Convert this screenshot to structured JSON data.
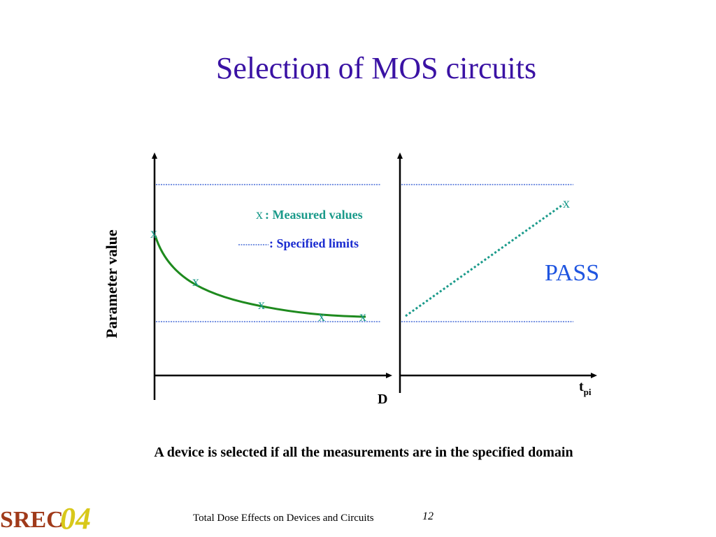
{
  "slide": {
    "title": "Selection of MOS circuits",
    "caption": "A device is selected if all the measurements are in the specified domain",
    "footer_text": "Total Dose Effects on Devices and Circuits",
    "page_number": "12",
    "logo_text": "SREC04"
  },
  "diagram": {
    "ylabel": "Parameter value",
    "left_xlabel": "D",
    "right_xlabel_main": "t",
    "right_xlabel_sub": "pi",
    "legend_marker": "x",
    "legend_measured": ": Measured values",
    "legend_limits": ": Specified limits",
    "marker_label": "x",
    "pass_label": "PASS",
    "colors": {
      "title": "#3a12a4",
      "limit_line": "#4a6fd8",
      "curve": "#1e8a1e",
      "marker": "#1a9a8a",
      "pass": "#1f55e0",
      "legend_limits_text": "#1a2bd0"
    }
  }
}
